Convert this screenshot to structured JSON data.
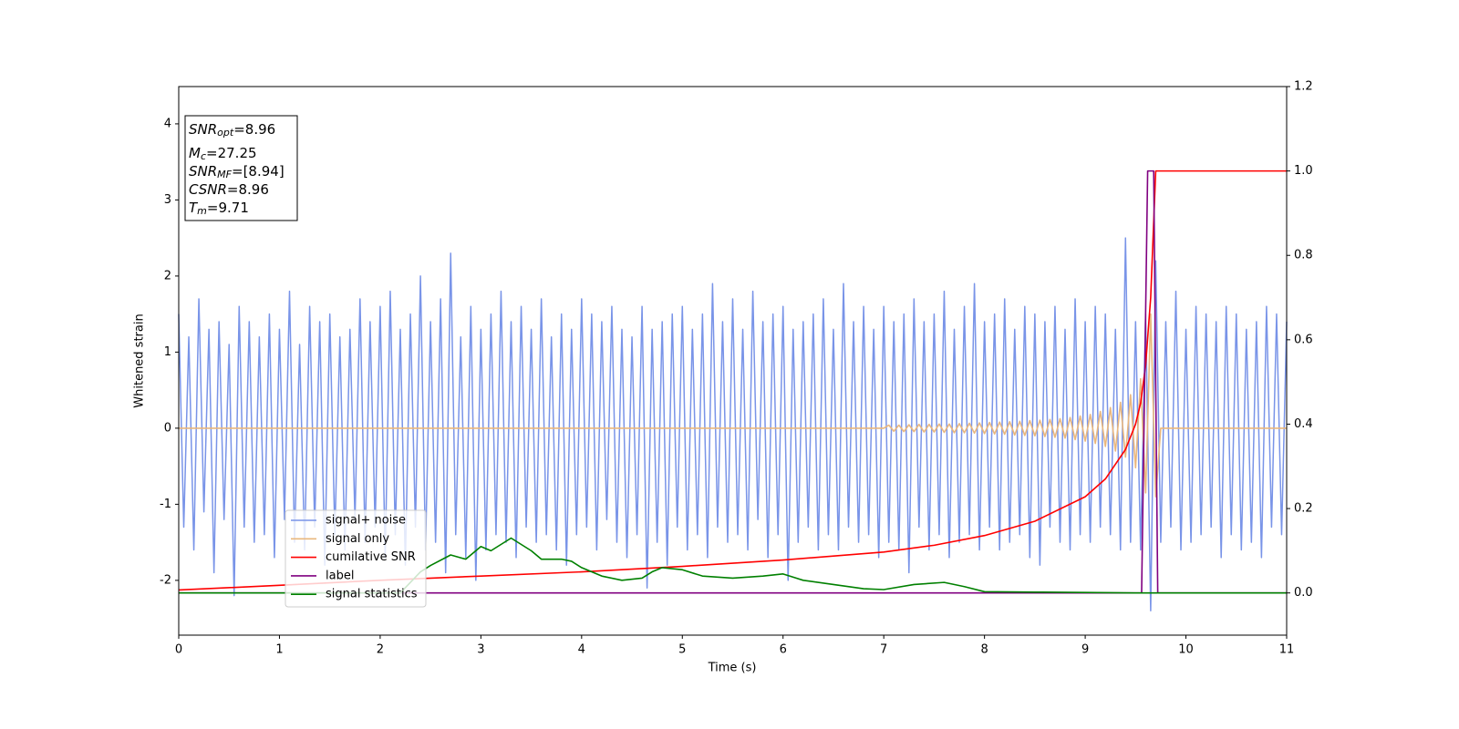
{
  "chart_data": {
    "type": "line",
    "xlabel": "Time (s)",
    "ylabel": "Whitened strain",
    "xlim": [
      0,
      11
    ],
    "ylim": [
      -2.72,
      4.49
    ],
    "y2lim": [
      -0.1,
      1.2
    ],
    "xticks": [
      0,
      1,
      2,
      3,
      4,
      5,
      6,
      7,
      8,
      9,
      10,
      11
    ],
    "yticks": [
      -2,
      -1,
      0,
      1,
      2,
      3,
      4
    ],
    "y2ticks": [
      {
        "value": 0,
        "label": "0.0"
      },
      {
        "value": 0.2,
        "label": "0.2"
      },
      {
        "value": 0.4,
        "label": "0.4"
      },
      {
        "value": 0.6,
        "label": "0.6"
      },
      {
        "value": 0.8,
        "label": "0.8"
      },
      {
        "value": 1,
        "label": "1.0"
      },
      {
        "value": 1.2,
        "label": "1.2"
      }
    ],
    "legend": true,
    "annotations": [
      {
        "main": "SNR",
        "sub": "opt",
        "rest": "=8.96"
      },
      {
        "main": "M",
        "sub": "c",
        "rest": "=27.25"
      },
      {
        "main": "SNR",
        "sub": "MF",
        "rest": "=[8.94]"
      },
      {
        "main": "CSNR",
        "rest": "=8.96"
      },
      {
        "main": "T",
        "sub": "m",
        "rest": "=9.71"
      }
    ],
    "series": [
      {
        "name": "signal+ noise",
        "color": "#7994e8",
        "axis": "y",
        "x": [
          0,
          0.05,
          0.1,
          0.15,
          0.2,
          0.25,
          0.3,
          0.35,
          0.4,
          0.45,
          0.5,
          0.55,
          0.6,
          0.65,
          0.7,
          0.75,
          0.8,
          0.85,
          0.9,
          0.95,
          1,
          1.05,
          1.1,
          1.15,
          1.2,
          1.25,
          1.3,
          1.35,
          1.4,
          1.45,
          1.5,
          1.55,
          1.6,
          1.65,
          1.7,
          1.75,
          1.8,
          1.85,
          1.9,
          1.95,
          2,
          2.05,
          2.1,
          2.15,
          2.2,
          2.25,
          2.3,
          2.35,
          2.4,
          2.45,
          2.5,
          2.55,
          2.6,
          2.65,
          2.7,
          2.75,
          2.8,
          2.85,
          2.9,
          2.95,
          3,
          3.05,
          3.1,
          3.15,
          3.2,
          3.25,
          3.3,
          3.35,
          3.4,
          3.45,
          3.5,
          3.55,
          3.6,
          3.65,
          3.7,
          3.75,
          3.8,
          3.85,
          3.9,
          3.95,
          4,
          4.05,
          4.1,
          4.15,
          4.2,
          4.25,
          4.3,
          4.35,
          4.4,
          4.45,
          4.5,
          4.55,
          4.6,
          4.65,
          4.7,
          4.75,
          4.8,
          4.85,
          4.9,
          4.95,
          5,
          5.05,
          5.1,
          5.15,
          5.2,
          5.25,
          5.3,
          5.35,
          5.4,
          5.45,
          5.5,
          5.55,
          5.6,
          5.65,
          5.7,
          5.75,
          5.8,
          5.85,
          5.9,
          5.95,
          6,
          6.05,
          6.1,
          6.15,
          6.2,
          6.25,
          6.3,
          6.35,
          6.4,
          6.45,
          6.5,
          6.55,
          6.6,
          6.65,
          6.7,
          6.75,
          6.8,
          6.85,
          6.9,
          6.95,
          7,
          7.05,
          7.1,
          7.15,
          7.2,
          7.25,
          7.3,
          7.35,
          7.4,
          7.45,
          7.5,
          7.55,
          7.6,
          7.65,
          7.7,
          7.75,
          7.8,
          7.85,
          7.9,
          7.95,
          8,
          8.05,
          8.1,
          8.15,
          8.2,
          8.25,
          8.3,
          8.35,
          8.4,
          8.45,
          8.5,
          8.55,
          8.6,
          8.65,
          8.7,
          8.75,
          8.8,
          8.85,
          8.9,
          8.95,
          9,
          9.05,
          9.1,
          9.15,
          9.2,
          9.25,
          9.3,
          9.35,
          9.4,
          9.45,
          9.5,
          9.55,
          9.6,
          9.65,
          9.7,
          9.75,
          9.8,
          9.85,
          9.9,
          9.95,
          10,
          10.05,
          10.1,
          10.15,
          10.2,
          10.25,
          10.3,
          10.35,
          10.4,
          10.45,
          10.5,
          10.55,
          10.6,
          10.65,
          10.7,
          10.75,
          10.8,
          10.85,
          10.9,
          10.95,
          11
        ],
        "values": [
          1.5,
          -1.3,
          1.2,
          -1.6,
          1.7,
          -1.1,
          1.3,
          -1.9,
          1.4,
          -1.2,
          1.1,
          -2.2,
          1.6,
          -1.3,
          1.4,
          -1.5,
          1.2,
          -1.4,
          1.5,
          -1.7,
          1.3,
          -1.2,
          1.8,
          -1.5,
          1.1,
          -1.6,
          1.6,
          -1.3,
          1.4,
          -1.8,
          1.5,
          -1.4,
          1.2,
          -1.6,
          1.3,
          -1.2,
          1.7,
          -1.5,
          1.4,
          -1.3,
          1.6,
          -1.7,
          1.8,
          -1.4,
          1.3,
          -1.8,
          1.5,
          -1.3,
          2.0,
          -1.6,
          1.4,
          -1.5,
          1.7,
          -1.9,
          2.3,
          -1.4,
          1.2,
          -1.7,
          1.6,
          -2.0,
          1.3,
          -1.6,
          1.5,
          -1.4,
          1.8,
          -1.5,
          1.4,
          -1.7,
          1.6,
          -1.3,
          1.3,
          -1.5,
          1.7,
          -1.4,
          1.2,
          -1.6,
          1.5,
          -1.8,
          1.3,
          -1.4,
          1.7,
          -1.3,
          1.5,
          -1.6,
          1.4,
          -1.2,
          1.6,
          -1.5,
          1.3,
          -1.7,
          1.2,
          -1.4,
          1.6,
          -2.1,
          1.3,
          -1.5,
          1.4,
          -1.8,
          1.5,
          -1.3,
          1.6,
          -1.6,
          1.3,
          -1.4,
          1.5,
          -1.7,
          1.9,
          -1.3,
          1.4,
          -1.5,
          1.7,
          -1.4,
          1.3,
          -1.6,
          1.8,
          -1.2,
          1.4,
          -1.7,
          1.5,
          -1.4,
          1.6,
          -2.0,
          1.3,
          -1.5,
          1.4,
          -1.3,
          1.5,
          -1.6,
          1.7,
          -1.4,
          1.3,
          -1.6,
          1.9,
          -1.3,
          1.4,
          -1.5,
          1.6,
          -1.4,
          1.3,
          -1.7,
          1.6,
          -1.5,
          1.4,
          -1.6,
          1.5,
          -1.9,
          1.7,
          -1.3,
          1.4,
          -1.6,
          1.5,
          -1.4,
          1.8,
          -1.7,
          1.3,
          -1.5,
          1.6,
          -1.4,
          1.9,
          -1.6,
          1.4,
          -1.3,
          1.5,
          -1.6,
          1.7,
          -1.5,
          1.3,
          -1.4,
          1.6,
          -1.7,
          1.5,
          -1.8,
          1.4,
          -1.3,
          1.6,
          -1.5,
          1.3,
          -1.6,
          1.7,
          -1.4,
          1.4,
          -1.5,
          1.6,
          -1.3,
          1.5,
          -1.4,
          1.3,
          -1.6,
          2.5,
          -1.5,
          1.4,
          -1.6,
          1.5,
          -2.4,
          2.2,
          -1.5,
          1.4,
          -1.3,
          1.8,
          -1.6,
          1.3,
          -1.5,
          1.6,
          -1.4,
          1.5,
          -1.3,
          1.4,
          -1.7,
          1.6,
          -1.4,
          1.5,
          -1.6,
          1.3,
          -1.5,
          1.4,
          -1.7,
          1.6,
          -1.3,
          1.5,
          -1.4,
          1.4
        ]
      },
      {
        "name": "signal only",
        "color": "#e9b77e",
        "axis": "y",
        "x": [
          0,
          7,
          7.05,
          7.1,
          7.15,
          7.2,
          7.25,
          7.3,
          7.35,
          7.4,
          7.45,
          7.5,
          7.55,
          7.6,
          7.65,
          7.7,
          7.75,
          7.8,
          7.85,
          7.9,
          7.95,
          8,
          8.05,
          8.1,
          8.15,
          8.2,
          8.25,
          8.3,
          8.35,
          8.4,
          8.45,
          8.5,
          8.55,
          8.6,
          8.65,
          8.7,
          8.75,
          8.8,
          8.85,
          8.9,
          8.95,
          9,
          9.05,
          9.1,
          9.15,
          9.2,
          9.25,
          9.3,
          9.35,
          9.4,
          9.45,
          9.5,
          9.55,
          9.6,
          9.65,
          9.7,
          9.75,
          11
        ],
        "values": [
          0,
          0,
          0.04,
          -0.04,
          0.04,
          -0.045,
          0.045,
          -0.045,
          0.05,
          -0.05,
          0.05,
          -0.05,
          0.055,
          -0.055,
          0.055,
          -0.06,
          0.06,
          -0.06,
          0.065,
          -0.065,
          0.07,
          -0.07,
          0.075,
          -0.075,
          0.08,
          -0.08,
          0.085,
          -0.09,
          0.09,
          -0.095,
          0.1,
          -0.1,
          0.105,
          -0.11,
          0.115,
          -0.12,
          0.125,
          -0.13,
          0.14,
          -0.15,
          0.16,
          -0.17,
          0.18,
          -0.2,
          0.22,
          -0.24,
          0.27,
          -0.3,
          0.34,
          -0.38,
          0.44,
          -0.52,
          0.65,
          -0.85,
          1.5,
          -0.9,
          0,
          0
        ]
      },
      {
        "name": "cumilative SNR",
        "color": "#ff0000",
        "axis": "y2",
        "x": [
          0,
          1,
          2,
          3,
          4,
          5,
          6,
          7,
          7.5,
          8,
          8.5,
          9,
          9.2,
          9.4,
          9.5,
          9.55,
          9.6,
          9.65,
          9.7,
          11
        ],
        "values": [
          0.007,
          0.018,
          0.03,
          0.04,
          0.05,
          0.063,
          0.078,
          0.097,
          0.113,
          0.136,
          0.17,
          0.228,
          0.27,
          0.34,
          0.4,
          0.45,
          0.54,
          0.7,
          1,
          1
        ]
      },
      {
        "name": "label",
        "color": "#800080",
        "axis": "y2",
        "x": [
          0,
          9.56,
          9.62,
          9.68,
          9.72,
          11
        ],
        "values": [
          0,
          0,
          1,
          1,
          0,
          0
        ]
      },
      {
        "name": "signal statistics",
        "color": "#008000",
        "axis": "y2",
        "x": [
          0,
          2.2,
          2.4,
          2.5,
          2.7,
          2.85,
          3.0,
          3.1,
          3.3,
          3.5,
          3.6,
          3.8,
          3.9,
          4.0,
          4.2,
          4.4,
          4.6,
          4.7,
          4.8,
          5.0,
          5.2,
          5.5,
          5.8,
          6.0,
          6.2,
          6.5,
          6.8,
          7.0,
          7.3,
          7.6,
          7.8,
          8.0,
          8.5,
          9.0,
          9.5,
          11
        ],
        "values": [
          0,
          0,
          0.05,
          0.065,
          0.09,
          0.08,
          0.11,
          0.1,
          0.13,
          0.1,
          0.08,
          0.08,
          0.075,
          0.06,
          0.04,
          0.03,
          0.035,
          0.05,
          0.06,
          0.055,
          0.04,
          0.035,
          0.04,
          0.045,
          0.03,
          0.02,
          0.01,
          0.008,
          0.02,
          0.025,
          0.015,
          0.003,
          0.002,
          0.001,
          0,
          0
        ]
      }
    ]
  }
}
